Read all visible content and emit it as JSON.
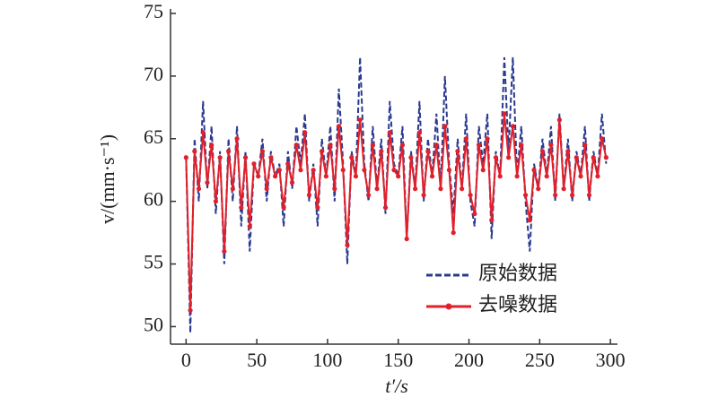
{
  "chart_data": {
    "type": "line",
    "x_label": "t′/s",
    "y_label": "v/(mm·s⁻¹)",
    "x": [
      0,
      3,
      6,
      9,
      12,
      15,
      18,
      21,
      24,
      27,
      30,
      33,
      36,
      39,
      42,
      45,
      48,
      51,
      54,
      57,
      60,
      63,
      66,
      69,
      72,
      75,
      78,
      81,
      84,
      87,
      90,
      93,
      96,
      99,
      102,
      105,
      108,
      111,
      114,
      117,
      120,
      123,
      126,
      129,
      132,
      135,
      138,
      141,
      144,
      147,
      150,
      153,
      156,
      159,
      162,
      165,
      168,
      171,
      174,
      177,
      180,
      183,
      186,
      189,
      192,
      195,
      198,
      201,
      204,
      207,
      210,
      213,
      216,
      219,
      222,
      225,
      228,
      231,
      234,
      237,
      240,
      243,
      246,
      249,
      252,
      255,
      258,
      261,
      264,
      267,
      270,
      273,
      276,
      279,
      282,
      285,
      288,
      291,
      294,
      297
    ],
    "series": [
      {
        "name": "原始数据",
        "color": "#2b3a8f",
        "dashed": true,
        "markers": false,
        "values": [
          63.5,
          49.5,
          65,
          60,
          68,
          61,
          66,
          59,
          64,
          55,
          65,
          60,
          66,
          58,
          64,
          56,
          63,
          62,
          65,
          60,
          64,
          62,
          63,
          58,
          64,
          61,
          66,
          63,
          67,
          60,
          63,
          58,
          65,
          62,
          66,
          60,
          69,
          63,
          55,
          64,
          62,
          71.5,
          63,
          60,
          66,
          61,
          65,
          59,
          68,
          63,
          62,
          66,
          57,
          64,
          61,
          68,
          60,
          65,
          62,
          67,
          61,
          70,
          63,
          59,
          65,
          61,
          67,
          60,
          58,
          66,
          63,
          67,
          57,
          64,
          62,
          71.5,
          64,
          71.5,
          62,
          66,
          60,
          56,
          63,
          61,
          65,
          62,
          66,
          60,
          67,
          61,
          65,
          60,
          64,
          62,
          66,
          60,
          64,
          62,
          67,
          63
        ]
      },
      {
        "name": "去噪数据",
        "color": "#e0202a",
        "dashed": false,
        "markers": true,
        "values": [
          63.5,
          51.3,
          64,
          61,
          65.5,
          61.5,
          64.5,
          60,
          63.5,
          56,
          64,
          61,
          65,
          59.5,
          63.5,
          58,
          63,
          62,
          64,
          61,
          63.5,
          62,
          62.5,
          59.5,
          63,
          61.5,
          64.5,
          62.5,
          65.5,
          60.5,
          62.5,
          59.5,
          64,
          62,
          64.5,
          61,
          66,
          62.5,
          56.5,
          63.5,
          62,
          66.5,
          62.5,
          60.5,
          64.5,
          61,
          64,
          59.5,
          65.5,
          62.5,
          62,
          64.5,
          57,
          63.5,
          61,
          65.5,
          60.5,
          64,
          62,
          64.5,
          61,
          66,
          62.5,
          57.5,
          64,
          61,
          65,
          60.5,
          59,
          64.5,
          62.5,
          65,
          58.5,
          63.5,
          62,
          67,
          63.5,
          66,
          62,
          64.5,
          60.5,
          58.5,
          62.5,
          61,
          64,
          62,
          64.5,
          60.5,
          66.5,
          61,
          64,
          60.5,
          63.5,
          62,
          64.5,
          60.5,
          63.5,
          62,
          65,
          63.5
        ]
      }
    ],
    "xlim": [
      -11,
      305
    ],
    "xticks": [
      0,
      50,
      100,
      150,
      200,
      250,
      300
    ],
    "ylim": [
      48.6,
      75
    ],
    "yticks": [
      50,
      55,
      60,
      65,
      70,
      75
    ],
    "legend": "lower right",
    "grid": false
  }
}
